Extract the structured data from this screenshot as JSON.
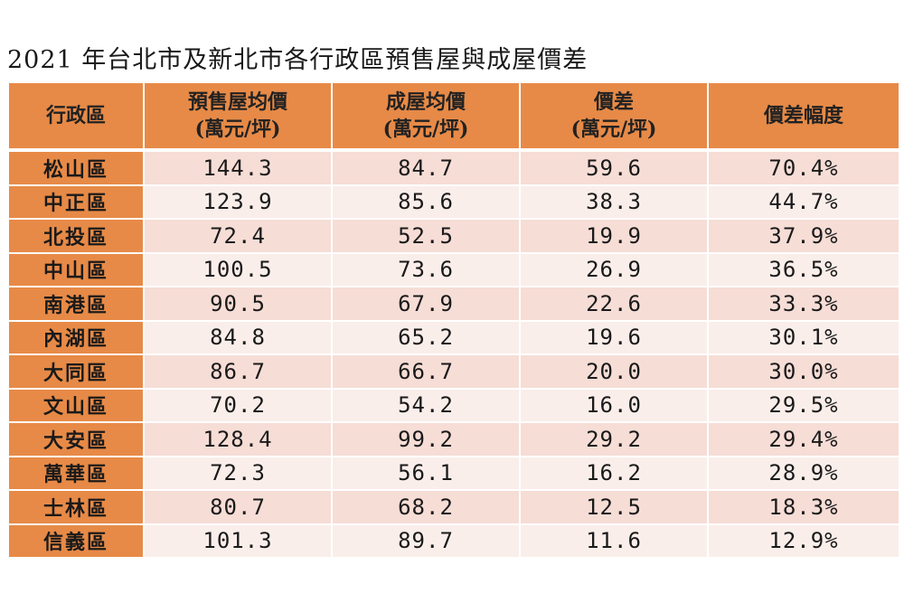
{
  "title": "2021 年台北市及新北市各行政區預售屋與成屋價差",
  "header": {
    "district": "行政區",
    "presale": {
      "line1": "預售屋均價",
      "line2": "(萬元/坪)"
    },
    "existing": {
      "line1": "成屋均價",
      "line2": "(萬元/坪)"
    },
    "diff": {
      "line1": "價差",
      "line2": "(萬元/坪)"
    },
    "pct": "價差幅度"
  },
  "colors": {
    "header_bg": "#e78a47",
    "row_odd": "#f6ddd6",
    "row_even": "#faeeea"
  },
  "rows": [
    {
      "district": "松山區",
      "presale": "144.3",
      "existing": "84.7",
      "diff": "59.6",
      "pct": "70.4%"
    },
    {
      "district": "中正區",
      "presale": "123.9",
      "existing": "85.6",
      "diff": "38.3",
      "pct": "44.7%"
    },
    {
      "district": "北投區",
      "presale": "72.4",
      "existing": "52.5",
      "diff": "19.9",
      "pct": "37.9%"
    },
    {
      "district": "中山區",
      "presale": "100.5",
      "existing": "73.6",
      "diff": "26.9",
      "pct": "36.5%"
    },
    {
      "district": "南港區",
      "presale": "90.5",
      "existing": "67.9",
      "diff": "22.6",
      "pct": "33.3%"
    },
    {
      "district": "內湖區",
      "presale": "84.8",
      "existing": "65.2",
      "diff": "19.6",
      "pct": "30.1%"
    },
    {
      "district": "大同區",
      "presale": "86.7",
      "existing": "66.7",
      "diff": "20.0",
      "pct": "30.0%"
    },
    {
      "district": "文山區",
      "presale": "70.2",
      "existing": "54.2",
      "diff": "16.0",
      "pct": "29.5%"
    },
    {
      "district": "大安區",
      "presale": "128.4",
      "existing": "99.2",
      "diff": "29.2",
      "pct": "29.4%"
    },
    {
      "district": "萬華區",
      "presale": "72.3",
      "existing": "56.1",
      "diff": "16.2",
      "pct": "28.9%"
    },
    {
      "district": "士林區",
      "presale": "80.7",
      "existing": "68.2",
      "diff": "12.5",
      "pct": "18.3%"
    },
    {
      "district": "信義區",
      "presale": "101.3",
      "existing": "89.7",
      "diff": "11.6",
      "pct": "12.9%"
    }
  ]
}
